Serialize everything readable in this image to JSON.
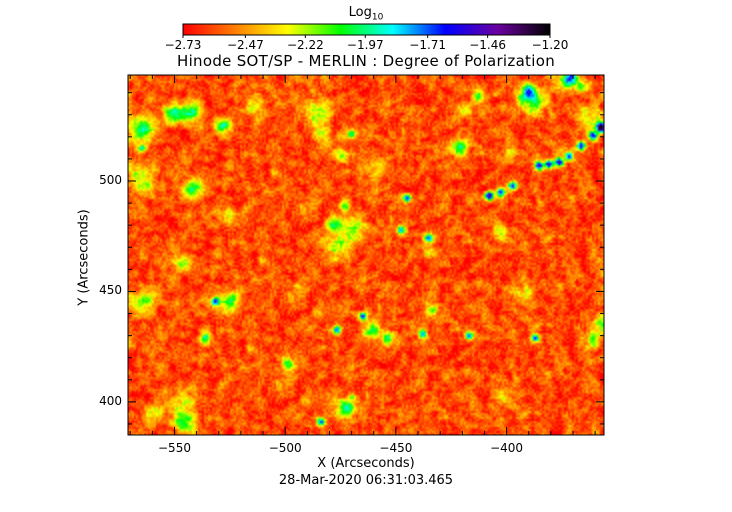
{
  "chart_data": {
    "type": "heatmap",
    "title": "Hinode SOT/SP - MERLIN : Degree of Polarization",
    "colorbar": {
      "label_base": "Log",
      "label_sub": "10",
      "ticks": [
        "-2.73",
        "-2.47",
        "-2.22",
        "-1.97",
        "-1.71",
        "-1.46",
        "-1.20"
      ],
      "range": [
        -2.73,
        -1.2
      ],
      "colormap": [
        "#ff0000",
        "#ff7f00",
        "#ffff00",
        "#00ff00",
        "#00ffff",
        "#0000ff",
        "#6a00a0",
        "#000000"
      ]
    },
    "xlabel": "X (Arcseconds)",
    "ylabel": "Y (Arcseconds)",
    "xlim": [
      -571,
      -356
    ],
    "ylim": [
      385,
      548
    ],
    "xticks": [
      -550,
      -500,
      -450,
      -400
    ],
    "yticks": [
      400,
      450,
      500
    ],
    "xtick_labels": [
      "−550",
      "−500",
      "−450",
      "−400"
    ],
    "ytick_labels": [
      "400",
      "450",
      "500"
    ],
    "timestamp": "28-Mar-2020 06:31:03.465"
  }
}
